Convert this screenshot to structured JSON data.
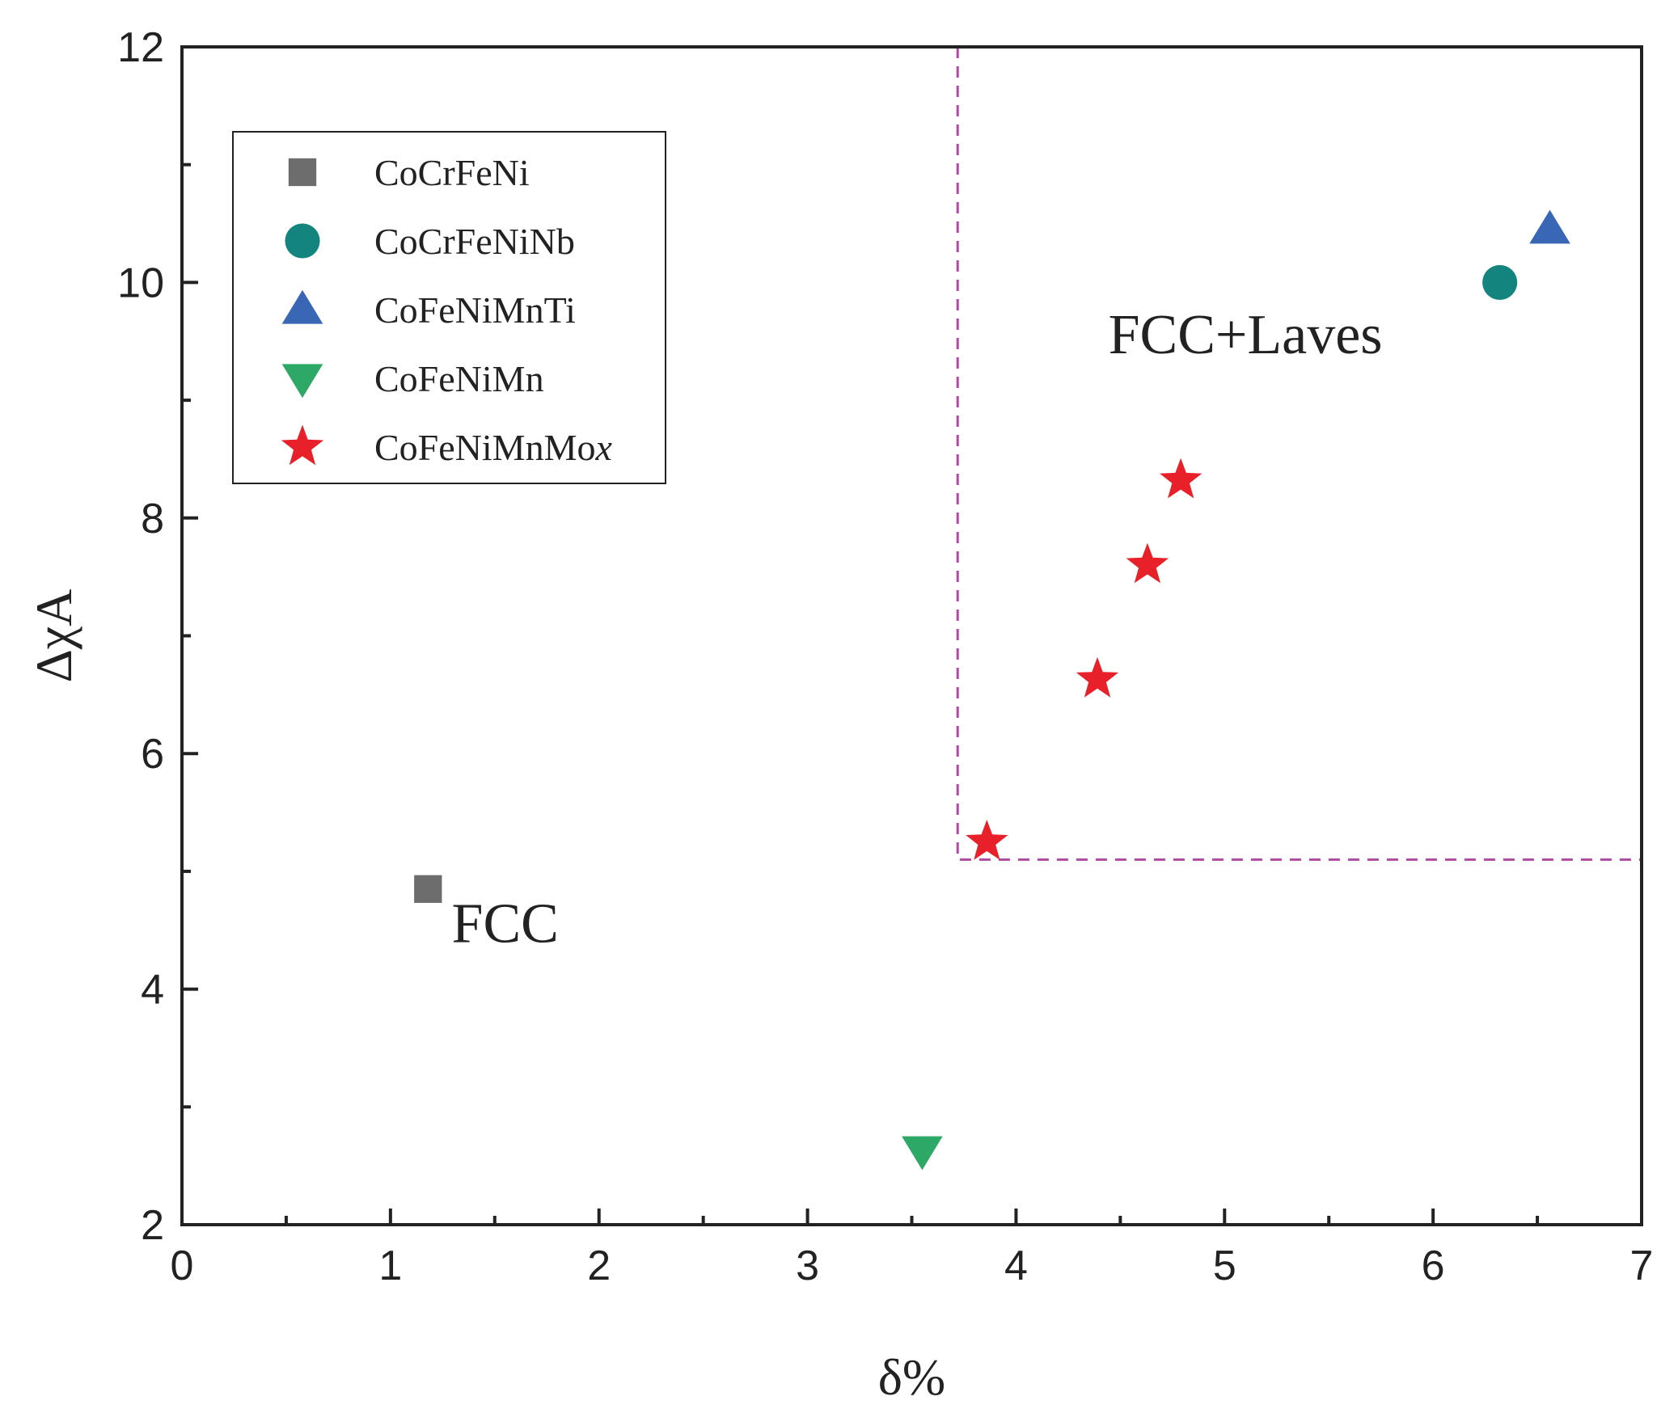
{
  "chart_data": {
    "type": "scatter",
    "title": "",
    "xlabel": "δ%",
    "ylabel": "ΔχA",
    "xlim": [
      0,
      7
    ],
    "ylim": [
      2,
      12
    ],
    "xticks": [
      "0",
      "1",
      "2",
      "3",
      "4",
      "5",
      "6",
      "7"
    ],
    "yticks": [
      "2",
      "4",
      "6",
      "8",
      "10",
      "12"
    ],
    "series": [
      {
        "name": "CoCrFeNi",
        "marker": "square",
        "color": "#6d6d6d",
        "points": [
          {
            "x": 1.18,
            "y": 4.85
          }
        ]
      },
      {
        "name": "CoCrFeNiNb",
        "marker": "circle",
        "color": "#13857e",
        "points": [
          {
            "x": 6.32,
            "y": 10.0
          }
        ]
      },
      {
        "name": "CoFeNiMnTi",
        "marker": "triangle-up",
        "color": "#3a67b5",
        "points": [
          {
            "x": 6.56,
            "y": 10.45
          }
        ]
      },
      {
        "name": "CoFeNiMn",
        "marker": "triangle-down",
        "color": "#2ea866",
        "points": [
          {
            "x": 3.55,
            "y": 2.63
          }
        ]
      },
      {
        "name": "CoFeNiMnMox",
        "name_main": "CoFeNiMnMo",
        "name_italic": "x",
        "marker": "star",
        "color": "#e8202a",
        "points": [
          {
            "x": 3.86,
            "y": 5.25
          },
          {
            "x": 4.39,
            "y": 6.63
          },
          {
            "x": 4.63,
            "y": 7.6
          },
          {
            "x": 4.79,
            "y": 8.32
          }
        ]
      }
    ],
    "boundary": {
      "style": "dashed",
      "color": "#b04aa0",
      "x": 3.72,
      "y": 5.1
    },
    "annotations": [
      {
        "text": "FCC+Laves",
        "x": 5.1,
        "y": 9.4
      },
      {
        "text": "FCC",
        "x": 1.55,
        "y": 4.4
      }
    ],
    "legend_position": "top-left"
  }
}
